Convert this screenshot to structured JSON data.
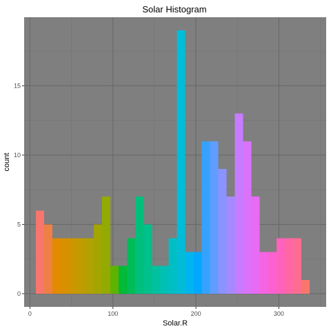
{
  "chart_data": {
    "type": "bar",
    "title": "Solar Histogram",
    "xlabel": "Solar.R",
    "ylabel": "count",
    "xlim": [
      -7,
      357
    ],
    "ylim": [
      -0.95,
      19.95
    ],
    "x_ticks": [
      0,
      100,
      200,
      300
    ],
    "y_ticks": [
      0,
      5,
      10,
      15
    ],
    "grid": true,
    "legend": "none",
    "bin_width": 10,
    "bins": [
      {
        "x_start": 7,
        "x_end": 17,
        "count": 6,
        "color": "#F8766D"
      },
      {
        "x_start": 17,
        "x_end": 27,
        "count": 5,
        "color": "#EE8044"
      },
      {
        "x_start": 27,
        "x_end": 37,
        "count": 4,
        "color": "#E28A00"
      },
      {
        "x_start": 37,
        "x_end": 47,
        "count": 4,
        "color": "#D89000"
      },
      {
        "x_start": 47,
        "x_end": 57,
        "count": 4,
        "color": "#CC9600"
      },
      {
        "x_start": 57,
        "x_end": 67,
        "count": 4,
        "color": "#BF9C00"
      },
      {
        "x_start": 67,
        "x_end": 77,
        "count": 4,
        "color": "#B2A100"
      },
      {
        "x_start": 77,
        "x_end": 87,
        "count": 5,
        "color": "#A3A500"
      },
      {
        "x_start": 87,
        "x_end": 97,
        "count": 7,
        "color": "#93AA00"
      },
      {
        "x_start": 97,
        "x_end": 107,
        "count": 2,
        "color": "#5EB300"
      },
      {
        "x_start": 107,
        "x_end": 117,
        "count": 2,
        "color": "#00BA38"
      },
      {
        "x_start": 117,
        "x_end": 127,
        "count": 4,
        "color": "#00BC56"
      },
      {
        "x_start": 127,
        "x_end": 137,
        "count": 7,
        "color": "#00BF7D"
      },
      {
        "x_start": 137,
        "x_end": 147,
        "count": 5,
        "color": "#00C08B"
      },
      {
        "x_start": 147,
        "x_end": 157,
        "count": 2,
        "color": "#00C19F"
      },
      {
        "x_start": 157,
        "x_end": 167,
        "count": 2,
        "color": "#00BFB4"
      },
      {
        "x_start": 167,
        "x_end": 177,
        "count": 4,
        "color": "#00BFC4"
      },
      {
        "x_start": 177,
        "x_end": 187,
        "count": 19,
        "color": "#00BCD8"
      },
      {
        "x_start": 187,
        "x_end": 197,
        "count": 3,
        "color": "#00B4EF"
      },
      {
        "x_start": 197,
        "x_end": 207,
        "count": 3,
        "color": "#00A9FF"
      },
      {
        "x_start": 207,
        "x_end": 217,
        "count": 11,
        "color": "#35A2FF"
      },
      {
        "x_start": 217,
        "x_end": 227,
        "count": 11,
        "color": "#619CFF"
      },
      {
        "x_start": 227,
        "x_end": 237,
        "count": 9,
        "color": "#8A93FF"
      },
      {
        "x_start": 237,
        "x_end": 247,
        "count": 7,
        "color": "#A58AFF"
      },
      {
        "x_start": 247,
        "x_end": 257,
        "count": 13,
        "color": "#C77CFF"
      },
      {
        "x_start": 257,
        "x_end": 267,
        "count": 11,
        "color": "#DB72FB"
      },
      {
        "x_start": 267,
        "x_end": 277,
        "count": 7,
        "color": "#E76BF3"
      },
      {
        "x_start": 277,
        "x_end": 287,
        "count": 3,
        "color": "#F564E3"
      },
      {
        "x_start": 287,
        "x_end": 297,
        "count": 3,
        "color": "#FD61D1"
      },
      {
        "x_start": 297,
        "x_end": 307,
        "count": 4,
        "color": "#FF62BC"
      },
      {
        "x_start": 307,
        "x_end": 317,
        "count": 4,
        "color": "#FF67A4"
      },
      {
        "x_start": 317,
        "x_end": 327,
        "count": 4,
        "color": "#FF6C91"
      },
      {
        "x_start": 327,
        "x_end": 337,
        "count": 1,
        "color": "#F8766D"
      }
    ],
    "colors": {
      "panel_background": "#7F7F7F",
      "grid_major": "#696969",
      "grid_minor": "#747474",
      "page_background": "#FFFFFF"
    }
  }
}
